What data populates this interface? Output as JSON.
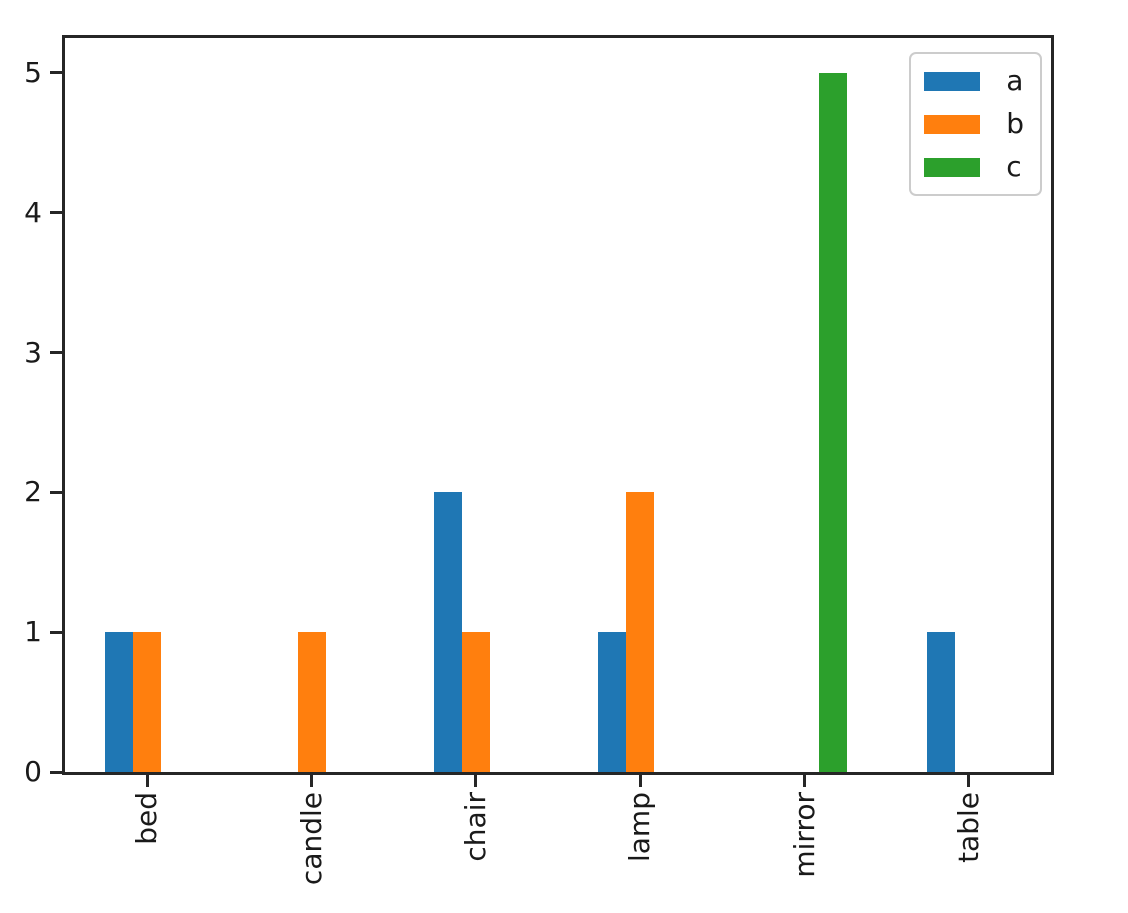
{
  "chart_data": {
    "type": "bar",
    "title": "",
    "xlabel": "",
    "ylabel": "",
    "categories": [
      "bed",
      "candle",
      "chair",
      "lamp",
      "mirror",
      "table"
    ],
    "series": [
      {
        "name": "a",
        "color": "#1f77b4",
        "values": [
          1,
          0,
          2,
          1,
          0,
          1
        ]
      },
      {
        "name": "b",
        "color": "#ff7f0e",
        "values": [
          1,
          1,
          1,
          2,
          0,
          0
        ]
      },
      {
        "name": "c",
        "color": "#2ca02c",
        "values": [
          0,
          0,
          0,
          0,
          5,
          0
        ]
      }
    ],
    "ylim": [
      0,
      5.25
    ],
    "yticks": [
      "0",
      "1",
      "2",
      "3",
      "4",
      "5"
    ],
    "xtick_rotation": 90,
    "legend": {
      "position": "upper right",
      "entries": [
        "a",
        "b",
        "c"
      ]
    },
    "grid": false,
    "background_color": "#ffffff",
    "axis_color": "#262626",
    "text_color": "#1a1a1a"
  }
}
